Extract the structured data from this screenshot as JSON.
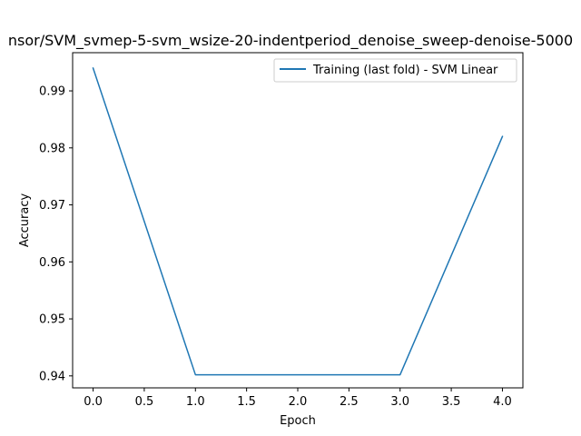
{
  "chart_data": {
    "type": "line",
    "title": "nsor/SVM_svmep-5-svm_wsize-20-indentperiod_denoise_sweep-denoise-5000",
    "xlabel": "Epoch",
    "ylabel": "Accuracy",
    "x": [
      0,
      1,
      2,
      3,
      4
    ],
    "series": [
      {
        "name": "Training (last fold) - SVM Linear",
        "values": [
          0.994,
          0.9402,
          0.9402,
          0.9402,
          0.982
        ],
        "color": "#1f77b4"
      }
    ],
    "xlim": [
      -0.2,
      4.2
    ],
    "ylim": [
      0.9379,
      0.9967
    ],
    "xticks": [
      0.0,
      0.5,
      1.0,
      1.5,
      2.0,
      2.5,
      3.0,
      3.5,
      4.0
    ],
    "xtick_labels": [
      "0.0",
      "0.5",
      "1.0",
      "1.5",
      "2.0",
      "2.5",
      "3.0",
      "3.5",
      "4.0"
    ],
    "yticks": [
      0.94,
      0.95,
      0.96,
      0.97,
      0.98,
      0.99
    ],
    "ytick_labels": [
      "0.94",
      "0.95",
      "0.96",
      "0.97",
      "0.98",
      "0.99"
    ],
    "grid": false,
    "legend_position": "upper right"
  }
}
